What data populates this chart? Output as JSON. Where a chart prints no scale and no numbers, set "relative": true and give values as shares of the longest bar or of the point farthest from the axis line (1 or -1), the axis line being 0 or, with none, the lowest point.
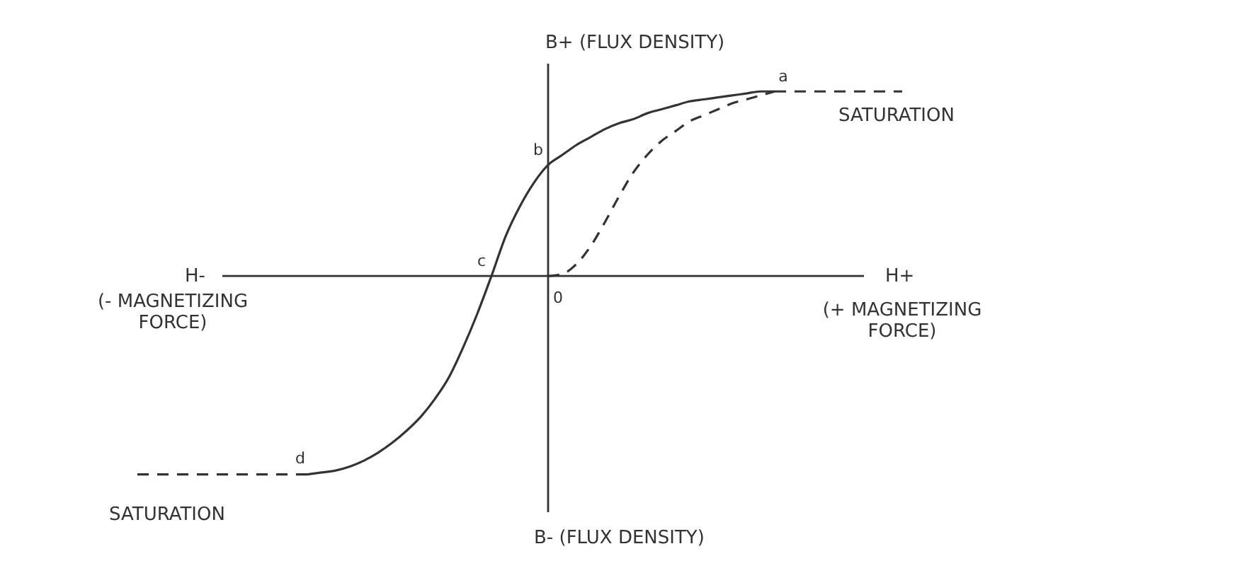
{
  "chart_data": {
    "type": "line",
    "relative": true,
    "ylabel": "B+ (FLUX DENSITY)",
    "xlabel": "H+",
    "annotations": [
      "(+ MAGNETIZING FORCE)",
      "H-",
      "(- MAGNETIZING FORCE)",
      "B- (FLUX DENSITY)",
      "a",
      "b",
      "c",
      "d",
      "0"
    ],
    "categories": [
      null,
      null,
      null,
      null,
      null,
      null,
      null,
      null,
      null,
      null,
      null,
      null,
      null,
      null,
      null,
      null,
      null,
      null,
      null,
      null,
      null,
      null,
      null,
      null,
      null,
      null,
      null,
      null,
      null,
      null,
      null,
      null,
      null,
      null,
      null,
      null,
      null,
      null,
      null,
      null,
      null,
      null,
      null,
      null,
      null,
      null,
      null,
      null,
      null,
      null,
      null,
      null,
      null,
      null,
      null,
      null,
      null,
      null,
      null
    ],
    "series": [
      {
        "color": "#333333",
        "line_style": "solid",
        "values": [
          null,
          null,
          null,
          null,
          null,
          null,
          null,
          null,
          null,
          null,
          null,
          null,
          -1.0,
          -0.99,
          -0.98,
          -0.96,
          -0.93,
          -0.89,
          -0.84,
          -0.78,
          -0.71,
          -0.62,
          -0.51,
          -0.36,
          -0.19,
          0.0,
          0.2,
          0.35,
          0.47,
          0.56,
          0.61,
          0.66,
          0.7,
          0.74,
          0.77,
          0.79,
          0.82,
          0.84,
          0.86,
          0.88,
          0.89,
          0.9,
          0.91,
          0.92,
          0.93,
          0.93,
          null,
          null,
          null,
          null,
          null,
          null,
          null,
          null,
          null,
          null,
          null,
          null,
          null
        ]
      },
      {
        "color": "#333333",
        "line_style": "dashed",
        "values": [
          null,
          null,
          null,
          null,
          null,
          null,
          null,
          null,
          null,
          null,
          null,
          null,
          null,
          null,
          null,
          null,
          null,
          null,
          null,
          null,
          null,
          null,
          null,
          null,
          null,
          null,
          null,
          null,
          null,
          0.0,
          0.01,
          0.06,
          0.15,
          0.27,
          0.4,
          0.52,
          0.61,
          0.68,
          0.73,
          0.78,
          0.81,
          0.84,
          0.87,
          0.89,
          0.91,
          0.93,
          null,
          null,
          null,
          null,
          null,
          null,
          null,
          null,
          null,
          null,
          null,
          null,
          null
        ]
      },
      {
        "name": "SATURATION",
        "color": "#333333",
        "line_style": "dashed",
        "values": [
          null,
          null,
          null,
          null,
          null,
          null,
          null,
          null,
          null,
          null,
          null,
          null,
          null,
          null,
          null,
          null,
          null,
          null,
          null,
          null,
          null,
          null,
          null,
          null,
          null,
          null,
          null,
          null,
          null,
          null,
          null,
          null,
          null,
          null,
          null,
          null,
          null,
          null,
          null,
          null,
          null,
          null,
          null,
          null,
          null,
          0.93,
          0.93,
          0.93,
          0.93,
          0.93,
          0.93,
          0.93,
          0.93,
          0.93,
          0.93,
          null,
          null,
          null,
          null
        ]
      },
      {
        "name": "SATURATION",
        "color": "#333333",
        "line_style": "dashed",
        "values": [
          -1.0,
          -1.0,
          -1.0,
          -1.0,
          -1.0,
          -1.0,
          -1.0,
          -1.0,
          -1.0,
          -1.0,
          -1.0,
          -1.0,
          -1.0,
          null,
          null,
          null,
          null,
          null,
          null,
          null,
          null,
          null,
          null,
          null,
          null,
          null,
          null,
          null,
          null,
          null,
          null,
          null,
          null,
          null,
          null,
          null,
          null,
          null,
          null,
          null,
          null,
          null,
          null,
          null,
          null,
          null,
          null,
          null,
          null,
          null,
          null,
          null,
          null,
          null,
          null,
          null,
          null,
          null,
          null
        ]
      }
    ]
  }
}
